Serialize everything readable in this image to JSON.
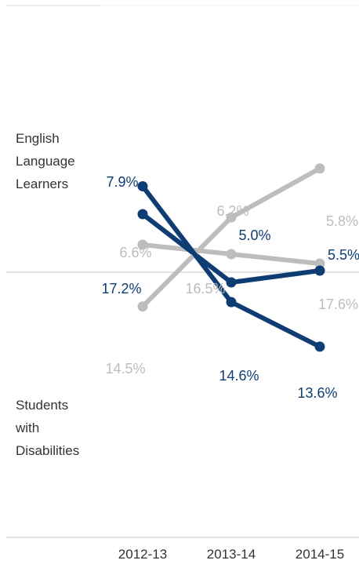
{
  "chart_data": {
    "type": "line",
    "categories": [
      "2012-13",
      "2013-14",
      "2014-15"
    ],
    "colors": {
      "highlight": "#0e3d73",
      "comparison": "#bdbdbd"
    },
    "panels": [
      {
        "label_lines": [
          "English",
          "Language",
          "Learners"
        ],
        "ylim": [
          2,
          13
        ],
        "series": [
          {
            "role": "comparison",
            "values": [
              6.6,
              6.2,
              5.8
            ],
            "labels": [
              "6.6%",
              "6.2%",
              "5.8%"
            ]
          },
          {
            "role": "highlight",
            "values": [
              7.9,
              5.0,
              5.5
            ],
            "labels": [
              "7.9%",
              "5.0%",
              "5.5%"
            ]
          }
        ]
      },
      {
        "label_lines": [
          "Students",
          "with",
          "Disabilities"
        ],
        "ylim": [
          8,
          20.5
        ],
        "series": [
          {
            "role": "comparison",
            "values": [
              14.5,
              16.5,
              17.6
            ],
            "labels": [
              "14.5%",
              "16.5%",
              "17.6%"
            ]
          },
          {
            "role": "highlight",
            "values": [
              17.2,
              14.6,
              13.6
            ],
            "labels": [
              "17.2%",
              "14.6%",
              "13.6%"
            ]
          }
        ]
      }
    ]
  }
}
